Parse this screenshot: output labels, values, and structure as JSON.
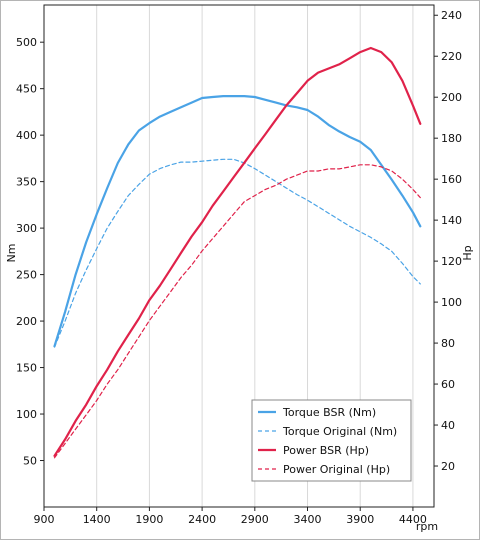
{
  "chart_data": {
    "type": "line",
    "xlabel": "rpm",
    "ylabel_left": "Nm",
    "ylabel_right": "Hp",
    "xlim": [
      900,
      4600
    ],
    "xticks": [
      900,
      1400,
      1900,
      2400,
      2900,
      3400,
      3900,
      4400
    ],
    "ylim_left": [
      0,
      540
    ],
    "yticks_left": [
      50,
      100,
      150,
      200,
      250,
      300,
      350,
      400,
      450,
      500
    ],
    "ylim_right": [
      0,
      245
    ],
    "yticks_right": [
      20,
      40,
      60,
      80,
      100,
      120,
      140,
      160,
      180,
      200,
      220,
      240
    ],
    "grid": {
      "x": true,
      "y": false
    },
    "legend_position": "bottom-right",
    "series": [
      {
        "name": "Torque BSR (Nm)",
        "axis": "left",
        "color": "#4aa3e6",
        "dash": "solid",
        "points": [
          [
            1000,
            173
          ],
          [
            1100,
            210
          ],
          [
            1200,
            250
          ],
          [
            1300,
            285
          ],
          [
            1400,
            315
          ],
          [
            1500,
            343
          ],
          [
            1600,
            370
          ],
          [
            1700,
            390
          ],
          [
            1800,
            405
          ],
          [
            1900,
            413
          ],
          [
            2000,
            420
          ],
          [
            2100,
            425
          ],
          [
            2200,
            430
          ],
          [
            2300,
            435
          ],
          [
            2400,
            440
          ],
          [
            2500,
            441
          ],
          [
            2600,
            442
          ],
          [
            2700,
            442
          ],
          [
            2800,
            442
          ],
          [
            2900,
            441
          ],
          [
            3000,
            438
          ],
          [
            3100,
            435
          ],
          [
            3200,
            432
          ],
          [
            3300,
            430
          ],
          [
            3400,
            427
          ],
          [
            3500,
            420
          ],
          [
            3600,
            411
          ],
          [
            3700,
            404
          ],
          [
            3800,
            398
          ],
          [
            3900,
            393
          ],
          [
            4000,
            384
          ],
          [
            4100,
            368
          ],
          [
            4200,
            352
          ],
          [
            4300,
            335
          ],
          [
            4400,
            317
          ],
          [
            4470,
            302
          ]
        ]
      },
      {
        "name": "Torque Original (Nm)",
        "axis": "left",
        "color": "#4aa3e6",
        "dash": "dashed",
        "points": [
          [
            1000,
            172
          ],
          [
            1100,
            200
          ],
          [
            1200,
            230
          ],
          [
            1300,
            255
          ],
          [
            1400,
            278
          ],
          [
            1500,
            300
          ],
          [
            1600,
            318
          ],
          [
            1700,
            335
          ],
          [
            1800,
            347
          ],
          [
            1900,
            358
          ],
          [
            2000,
            364
          ],
          [
            2100,
            368
          ],
          [
            2200,
            371
          ],
          [
            2300,
            371
          ],
          [
            2400,
            372
          ],
          [
            2500,
            373
          ],
          [
            2600,
            374
          ],
          [
            2700,
            374
          ],
          [
            2800,
            370
          ],
          [
            2900,
            364
          ],
          [
            3000,
            357
          ],
          [
            3100,
            350
          ],
          [
            3200,
            343
          ],
          [
            3300,
            336
          ],
          [
            3400,
            330
          ],
          [
            3500,
            323
          ],
          [
            3600,
            316
          ],
          [
            3700,
            309
          ],
          [
            3800,
            302
          ],
          [
            3900,
            296
          ],
          [
            4000,
            290
          ],
          [
            4100,
            283
          ],
          [
            4200,
            275
          ],
          [
            4300,
            262
          ],
          [
            4400,
            248
          ],
          [
            4470,
            240
          ]
        ]
      },
      {
        "name": "Power BSR (Hp)",
        "axis": "right",
        "color": "#e0224a",
        "dash": "solid",
        "points": [
          [
            1000,
            25
          ],
          [
            1100,
            33
          ],
          [
            1200,
            42
          ],
          [
            1300,
            50
          ],
          [
            1400,
            59
          ],
          [
            1500,
            67
          ],
          [
            1600,
            76
          ],
          [
            1700,
            84
          ],
          [
            1800,
            92
          ],
          [
            1900,
            101
          ],
          [
            2000,
            108
          ],
          [
            2100,
            116
          ],
          [
            2200,
            124
          ],
          [
            2300,
            132
          ],
          [
            2400,
            139
          ],
          [
            2500,
            147
          ],
          [
            2600,
            154
          ],
          [
            2700,
            161
          ],
          [
            2800,
            168
          ],
          [
            2900,
            175
          ],
          [
            3000,
            182
          ],
          [
            3100,
            189
          ],
          [
            3200,
            196
          ],
          [
            3300,
            202
          ],
          [
            3400,
            208
          ],
          [
            3500,
            212
          ],
          [
            3600,
            214
          ],
          [
            3700,
            216
          ],
          [
            3800,
            219
          ],
          [
            3900,
            222
          ],
          [
            4000,
            224
          ],
          [
            4100,
            222
          ],
          [
            4200,
            217
          ],
          [
            4300,
            208
          ],
          [
            4400,
            196
          ],
          [
            4470,
            187
          ]
        ]
      },
      {
        "name": "Power Original (Hp)",
        "axis": "right",
        "color": "#e0224a",
        "dash": "dashed",
        "points": [
          [
            1000,
            24
          ],
          [
            1100,
            31
          ],
          [
            1200,
            38
          ],
          [
            1300,
            45
          ],
          [
            1400,
            52
          ],
          [
            1500,
            60
          ],
          [
            1600,
            67
          ],
          [
            1700,
            75
          ],
          [
            1800,
            83
          ],
          [
            1900,
            91
          ],
          [
            2000,
            98
          ],
          [
            2100,
            105
          ],
          [
            2200,
            112
          ],
          [
            2300,
            118
          ],
          [
            2400,
            125
          ],
          [
            2500,
            131
          ],
          [
            2600,
            137
          ],
          [
            2700,
            143
          ],
          [
            2800,
            149
          ],
          [
            2900,
            152
          ],
          [
            3000,
            155
          ],
          [
            3100,
            157
          ],
          [
            3200,
            160
          ],
          [
            3300,
            162
          ],
          [
            3400,
            164
          ],
          [
            3500,
            164
          ],
          [
            3600,
            165
          ],
          [
            3700,
            165
          ],
          [
            3800,
            166
          ],
          [
            3900,
            167
          ],
          [
            4000,
            167
          ],
          [
            4100,
            166
          ],
          [
            4200,
            164
          ],
          [
            4300,
            160
          ],
          [
            4400,
            155
          ],
          [
            4470,
            151
          ]
        ]
      }
    ]
  }
}
